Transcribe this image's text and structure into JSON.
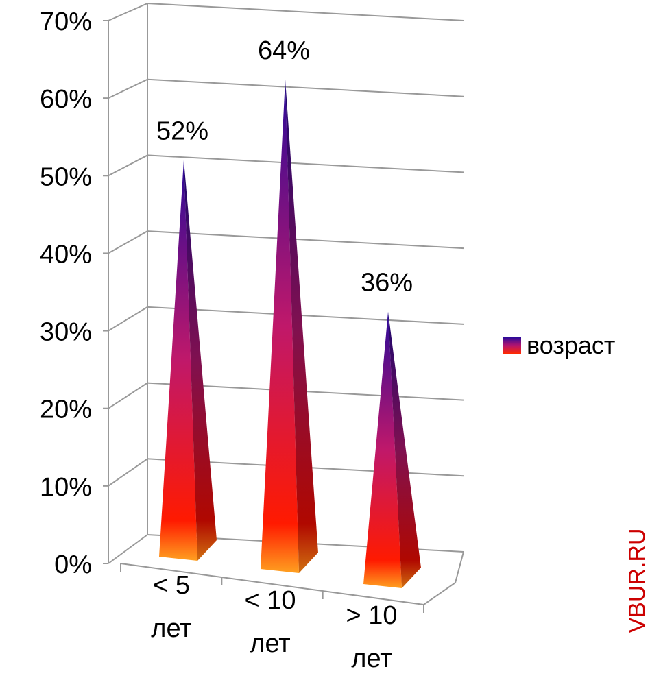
{
  "chart_data": {
    "type": "bar",
    "style": "3d-pyramid",
    "categories": [
      [
        "< 5",
        "лет"
      ],
      [
        "< 10",
        "лет"
      ],
      [
        "> 10",
        "лет"
      ]
    ],
    "series": [
      {
        "name": "возраст",
        "values": [
          52,
          64,
          36
        ]
      }
    ],
    "data_labels": [
      "52%",
      "64%",
      "36%"
    ],
    "yticks": [
      "0%",
      "10%",
      "20%",
      "30%",
      "40%",
      "50%",
      "60%",
      "70%"
    ],
    "ylim": [
      0,
      70
    ],
    "grid": true,
    "legend": "right",
    "colors": {
      "top": "#2a0a9a",
      "middle": "#b4146e",
      "bottom": "#ff1a00",
      "base": "#ffa020",
      "grid": "#999999"
    }
  },
  "watermark": "VBUR.RU"
}
